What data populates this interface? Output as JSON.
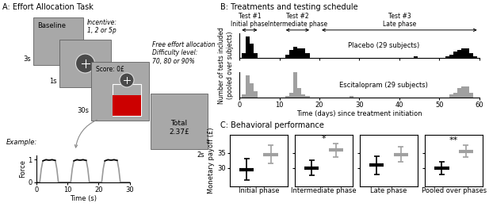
{
  "panel_titles": [
    "A: Effort Allocation Task",
    "B: Treatments and testing schedule",
    "C: Behavioral performance"
  ],
  "task_diagram": {
    "screens": [
      {
        "text": [
          "Baseline"
        ],
        "duration": "3s"
      },
      {
        "duration": "1s",
        "note": [
          "Incentive:",
          "1, 2 or 5p"
        ]
      },
      {
        "text": [
          "Score: 0£"
        ],
        "duration": "30s",
        "note": [
          "Free effort allocation",
          "Difficulty level:",
          "70, 80 or 90%"
        ]
      },
      {
        "text": [
          "Total",
          "2.37£"
        ],
        "duration": "2s"
      }
    ],
    "example_label": "Example:"
  },
  "chart_data": [
    {
      "type": "line",
      "xlabel": "Time (s)",
      "ylabel": "Force",
      "x": [
        0,
        1,
        1.5,
        2,
        3,
        4,
        5,
        6,
        6.5,
        7,
        10,
        11,
        11.5,
        12,
        13,
        14,
        15,
        16,
        16.5,
        17,
        20,
        21,
        21.5,
        22,
        23,
        24,
        25,
        26,
        26.5,
        27,
        30
      ],
      "series": [
        {
          "color": "#999999",
          "values": [
            0,
            0,
            0.6,
            0.95,
            1,
            0.98,
            1,
            0.97,
            0.6,
            0,
            0,
            0,
            0.6,
            0.95,
            1,
            0.98,
            1,
            0.97,
            0.6,
            0,
            0,
            0,
            0.6,
            0.95,
            1,
            0.98,
            1,
            0.97,
            0.6,
            0,
            0
          ]
        },
        {
          "color": "#000000",
          "values": [
            null,
            null,
            null,
            0.95,
            1,
            0.98,
            1,
            0.97,
            null,
            null,
            null,
            null,
            null,
            0.95,
            1,
            0.98,
            1,
            0.97,
            null,
            null,
            null,
            null,
            null,
            0.95,
            1,
            0.98,
            1,
            0.97,
            null,
            null,
            null
          ]
        }
      ],
      "xlim": [
        0,
        30
      ],
      "ylim": [
        0,
        1.2
      ],
      "xticks": [
        0,
        10,
        20,
        30
      ],
      "yticks": [
        0,
        1
      ]
    },
    {
      "type": "bar",
      "annotation": "Placebo (29 subjects)",
      "ylabel": [
        "Number of tests included",
        "(pooled over subjects)"
      ],
      "x": [
        1,
        2,
        3,
        4,
        12,
        13,
        14,
        15,
        16,
        17,
        44,
        52,
        53,
        54,
        55,
        56,
        57,
        58,
        59
      ],
      "values": [
        3,
        14,
        9,
        3,
        2,
        5,
        7,
        6,
        6,
        3,
        1,
        1,
        2,
        4,
        5,
        6,
        6,
        3,
        1
      ],
      "color": "#000000",
      "xlim": [
        0,
        60
      ],
      "ylim": [
        0,
        16
      ],
      "xticks": [
        0,
        10,
        20,
        30,
        40,
        50,
        60
      ],
      "tick_labels": false,
      "phases": [
        {
          "label": "Test #1",
          "name": "Initial phase",
          "days": [
            0,
            5
          ]
        },
        {
          "label": "Test #2",
          "name": "Intermediate phase",
          "days": [
            11,
            18
          ]
        },
        {
          "label": "Test #3",
          "name": "Late phase",
          "days": [
            20,
            60
          ]
        }
      ]
    },
    {
      "type": "bar",
      "annotation": "Escitalopram (29 subjects)",
      "xlabel": "Time (days) since treatment initiation",
      "x": [
        1,
        2,
        3,
        4,
        12,
        13,
        14,
        15,
        16,
        17,
        28,
        53,
        54,
        55,
        56,
        57,
        58
      ],
      "values": [
        2,
        14,
        9,
        4,
        1,
        3,
        16,
        6,
        2,
        1,
        1,
        2,
        3,
        6,
        7,
        7,
        3
      ],
      "color": "#a0a0a0",
      "xlim": [
        0,
        60
      ],
      "ylim": [
        0,
        16
      ],
      "xticks": [
        0,
        10,
        20,
        30,
        40,
        50,
        60
      ],
      "tick_labels": "x"
    },
    {
      "type": "errorbar",
      "xlabel": "Initial phase",
      "ylabel": "Monetary payoff (£)",
      "categories": [
        null,
        null
      ],
      "values": [
        29.5,
        34.5
      ],
      "ci_low": [
        26,
        31.5
      ],
      "ci_high": [
        33,
        37.5
      ],
      "colors": [
        "#000000",
        "#a0a0a0"
      ],
      "ylim": [
        24,
        41
      ],
      "yticks": [
        30,
        35
      ],
      "tick_labels": "y"
    },
    {
      "type": "errorbar",
      "xlabel": "Intermediate phase",
      "categories": [
        null,
        null
      ],
      "values": [
        30,
        36
      ],
      "ci_low": [
        27.5,
        33.5
      ],
      "ci_high": [
        32.5,
        38
      ],
      "colors": [
        "#000000",
        "#a0a0a0"
      ],
      "ylim": [
        24,
        41
      ],
      "yticks": [
        30,
        35
      ],
      "tick_labels": false,
      "significance": "*"
    },
    {
      "type": "errorbar",
      "xlabel": "Late phase",
      "categories": [
        null,
        null
      ],
      "values": [
        31,
        34.5
      ],
      "ci_low": [
        28,
        32
      ],
      "ci_high": [
        34,
        37
      ],
      "colors": [
        "#000000",
        "#a0a0a0"
      ],
      "ylim": [
        24,
        41
      ],
      "yticks": [
        30,
        35
      ],
      "tick_labels": false
    },
    {
      "type": "errorbar",
      "xlabel": "Pooled over phases",
      "categories": [
        null,
        null
      ],
      "values": [
        30,
        35.5
      ],
      "ci_low": [
        28,
        33.5
      ],
      "ci_high": [
        32,
        37.5
      ],
      "colors": [
        "#000000",
        "#a0a0a0"
      ],
      "ylim": [
        24,
        41
      ],
      "yticks": [
        30,
        35
      ],
      "tick_labels": false,
      "significance": "**"
    }
  ]
}
